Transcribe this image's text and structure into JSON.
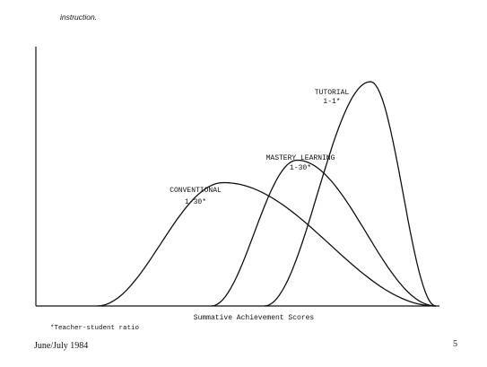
{
  "header_text": "instruction.",
  "chart_data": {
    "type": "line",
    "xlabel": "Summative Achievement Scores",
    "ylabel": "",
    "series": [
      {
        "name": "CONVENTIONAL",
        "label": [
          "CONVENTIONAL",
          "1-30*"
        ],
        "peak_x": 0.46,
        "peak_y": 0.55,
        "x_start": 0.15,
        "x_end": 0.98
      },
      {
        "name": "MASTERY LEARNING",
        "label": [
          "MASTERY LEARNING",
          "1-30*"
        ],
        "peak_x": 0.64,
        "peak_y": 0.65,
        "x_start": 0.43,
        "x_end": 0.98
      },
      {
        "name": "TUTORIAL",
        "label": [
          "TUTORIAL",
          "1-1*"
        ],
        "peak_x": 0.82,
        "peak_y": 1.0,
        "x_start": 0.56,
        "x_end": 0.98
      }
    ]
  },
  "footnote": "*Teacher-student ratio",
  "footer": {
    "date": "June/July 1984",
    "page": "5"
  }
}
